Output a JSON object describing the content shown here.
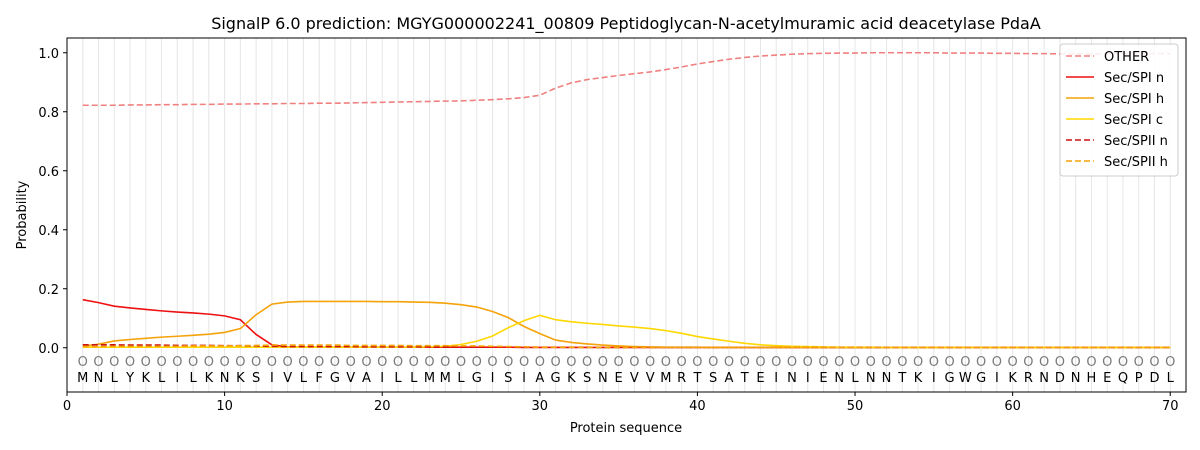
{
  "chart_data": {
    "type": "line",
    "title": "SignalP 6.0 prediction: MGYG000002241_00809 Peptidoglycan-N-acetylmuramic acid deacetylase PdaA",
    "xlabel": "Protein sequence",
    "ylabel": "Probability",
    "xlim": [
      0,
      71
    ],
    "ylim": [
      -0.15,
      1.05
    ],
    "x_ticks": [
      0,
      10,
      20,
      30,
      40,
      50,
      60,
      70
    ],
    "y_ticks": [
      0.0,
      0.2,
      0.4,
      0.6,
      0.8,
      1.0
    ],
    "x_tick_labels": [
      "0",
      "10",
      "20",
      "30",
      "40",
      "50",
      "60",
      "70"
    ],
    "y_tick_labels": [
      "0.0",
      "0.2",
      "0.4",
      "0.6",
      "0.8",
      "1.0"
    ],
    "sequence": [
      "M",
      "N",
      "L",
      "Y",
      "K",
      "L",
      "I",
      "L",
      "K",
      "N",
      "K",
      "S",
      "I",
      "V",
      "L",
      "F",
      "G",
      "V",
      "A",
      "I",
      "L",
      "L",
      "M",
      "M",
      "L",
      "G",
      "I",
      "S",
      "I",
      "A",
      "G",
      "K",
      "S",
      "N",
      "E",
      "V",
      "V",
      "M",
      "R",
      "T",
      "S",
      "A",
      "T",
      "E",
      "I",
      "N",
      "I",
      "E",
      "N",
      "L",
      "N",
      "N",
      "T",
      "K",
      "I",
      "G",
      "W",
      "G",
      "I",
      "K",
      "R",
      "N",
      "D",
      "N",
      "H",
      "E",
      "Q",
      "P",
      "D",
      "L"
    ],
    "region_marker": "O",
    "region_marker_y": -0.045,
    "grid": "vertical lines at each residue",
    "legend_position": "top-right",
    "series": [
      {
        "name": "OTHER",
        "color": "#f08080",
        "dash": true,
        "values": [
          0.822,
          0.822,
          0.822,
          0.823,
          0.823,
          0.824,
          0.824,
          0.825,
          0.825,
          0.826,
          0.826,
          0.827,
          0.827,
          0.828,
          0.828,
          0.829,
          0.829,
          0.83,
          0.831,
          0.832,
          0.833,
          0.834,
          0.835,
          0.836,
          0.837,
          0.839,
          0.841,
          0.844,
          0.848,
          0.856,
          0.88,
          0.898,
          0.909,
          0.916,
          0.923,
          0.929,
          0.935,
          0.943,
          0.952,
          0.962,
          0.97,
          0.978,
          0.984,
          0.989,
          0.992,
          0.995,
          0.997,
          0.998,
          0.999,
          0.999,
          1.0,
          1.0,
          1.0,
          1.0,
          1.0,
          0.999,
          0.999,
          0.999,
          0.998,
          0.998,
          0.997,
          0.997,
          0.996,
          0.996,
          0.996,
          0.997,
          0.997,
          0.997,
          0.997,
          0.997
        ]
      },
      {
        "name": "Sec/SPI n",
        "color": "#ee1111",
        "dash": false,
        "values": [
          0.163,
          0.153,
          0.141,
          0.135,
          0.13,
          0.125,
          0.121,
          0.118,
          0.114,
          0.108,
          0.095,
          0.045,
          0.01,
          0.003,
          0.002,
          0.002,
          0.002,
          0.002,
          0.002,
          0.002,
          0.002,
          0.002,
          0.002,
          0.002,
          0.002,
          0.002,
          0.002,
          0.002,
          0.001,
          0.001,
          0.001,
          0.001,
          0.001,
          0.001,
          0.001,
          0.001,
          0.001,
          0.001,
          0.001,
          0.001,
          0.001,
          0.001,
          0.001,
          0.001,
          0.001,
          0.001,
          0.001,
          0.001,
          0.001,
          0.001,
          0.001,
          0.001,
          0.001,
          0.001,
          0.001,
          0.001,
          0.001,
          0.001,
          0.001,
          0.001,
          0.001,
          0.001,
          0.001,
          0.001,
          0.001,
          0.001,
          0.001,
          0.001,
          0.001,
          0.001
        ]
      },
      {
        "name": "Sec/SPI h",
        "color": "#f5a30a",
        "dash": false,
        "values": [
          0.005,
          0.012,
          0.023,
          0.028,
          0.032,
          0.036,
          0.039,
          0.042,
          0.046,
          0.052,
          0.065,
          0.112,
          0.148,
          0.155,
          0.157,
          0.157,
          0.157,
          0.157,
          0.157,
          0.156,
          0.156,
          0.155,
          0.154,
          0.151,
          0.146,
          0.138,
          0.123,
          0.102,
          0.072,
          0.048,
          0.026,
          0.018,
          0.013,
          0.009,
          0.006,
          0.004,
          0.003,
          0.002,
          0.002,
          0.002,
          0.001,
          0.001,
          0.001,
          0.001,
          0.001,
          0.001,
          0.001,
          0.001,
          0.001,
          0.001,
          0.001,
          0.001,
          0.001,
          0.001,
          0.001,
          0.001,
          0.001,
          0.001,
          0.001,
          0.001,
          0.001,
          0.001,
          0.001,
          0.001,
          0.001,
          0.001,
          0.001,
          0.001,
          0.001,
          0.001
        ]
      },
      {
        "name": "Sec/SPI c",
        "color": "#ffd700",
        "dash": false,
        "values": [
          0.002,
          0.002,
          0.002,
          0.002,
          0.002,
          0.002,
          0.002,
          0.002,
          0.002,
          0.002,
          0.002,
          0.002,
          0.002,
          0.002,
          0.002,
          0.002,
          0.002,
          0.002,
          0.002,
          0.002,
          0.002,
          0.002,
          0.003,
          0.005,
          0.011,
          0.022,
          0.04,
          0.068,
          0.092,
          0.11,
          0.095,
          0.088,
          0.083,
          0.079,
          0.074,
          0.07,
          0.065,
          0.058,
          0.049,
          0.038,
          0.03,
          0.022,
          0.015,
          0.01,
          0.007,
          0.005,
          0.004,
          0.003,
          0.002,
          0.002,
          0.002,
          0.001,
          0.001,
          0.001,
          0.001,
          0.001,
          0.001,
          0.001,
          0.001,
          0.001,
          0.001,
          0.001,
          0.001,
          0.001,
          0.001,
          0.001,
          0.001,
          0.001,
          0.001,
          0.001
        ]
      },
      {
        "name": "Sec/SPII n",
        "color": "#cc1111",
        "dash": true,
        "values": [
          0.01,
          0.01,
          0.01,
          0.009,
          0.009,
          0.009,
          0.008,
          0.008,
          0.008,
          0.007,
          0.007,
          0.006,
          0.005,
          0.004,
          0.004,
          0.004,
          0.004,
          0.004,
          0.003,
          0.003,
          0.003,
          0.003,
          0.003,
          0.003,
          0.003,
          0.003,
          0.003,
          0.003,
          0.002,
          0.002,
          0.002,
          0.002,
          0.002,
          0.001,
          0.001,
          0.001,
          0.001,
          0.001,
          0.001,
          0.001,
          0.001,
          0.001,
          0.001,
          0.001,
          0.001,
          0.001,
          0.001,
          0.001,
          0.001,
          0.001,
          0.001,
          0.001,
          0.001,
          0.001,
          0.001,
          0.001,
          0.001,
          0.001,
          0.001,
          0.001,
          0.001,
          0.001,
          0.001,
          0.001,
          0.001,
          0.001,
          0.001,
          0.001,
          0.001,
          0.001
        ]
      },
      {
        "name": "Sec/SPII h",
        "color": "#f5a30a",
        "dash": true,
        "values": [
          0.004,
          0.004,
          0.005,
          0.005,
          0.005,
          0.005,
          0.005,
          0.006,
          0.006,
          0.006,
          0.007,
          0.008,
          0.009,
          0.009,
          0.009,
          0.009,
          0.009,
          0.008,
          0.008,
          0.008,
          0.008,
          0.007,
          0.007,
          0.007,
          0.006,
          0.006,
          0.005,
          0.004,
          0.003,
          0.002,
          0.002,
          0.002,
          0.001,
          0.001,
          0.001,
          0.001,
          0.001,
          0.001,
          0.001,
          0.001,
          0.001,
          0.001,
          0.001,
          0.001,
          0.001,
          0.001,
          0.001,
          0.001,
          0.001,
          0.001,
          0.001,
          0.001,
          0.001,
          0.001,
          0.001,
          0.001,
          0.001,
          0.001,
          0.001,
          0.001,
          0.001,
          0.001,
          0.001,
          0.001,
          0.001,
          0.001,
          0.001,
          0.001,
          0.001,
          0.001
        ]
      }
    ]
  }
}
